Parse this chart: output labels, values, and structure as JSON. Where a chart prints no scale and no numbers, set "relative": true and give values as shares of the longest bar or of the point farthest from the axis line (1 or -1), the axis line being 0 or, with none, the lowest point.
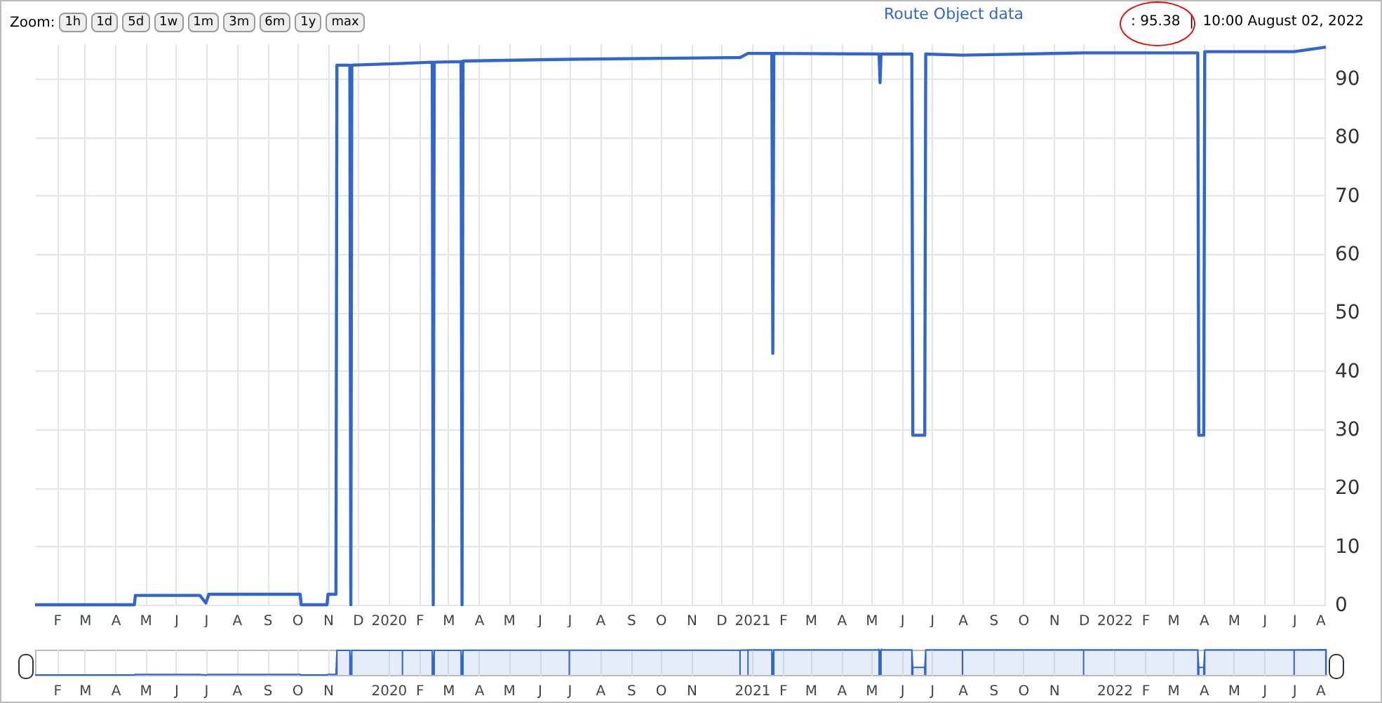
{
  "chart_data": [
    {
      "type": "line",
      "legend": "top right",
      "grid": true,
      "marker": "none",
      "annotations": [
        "Zoom:",
        "1h",
        "1d",
        "5d",
        "1w",
        "1m",
        "3m",
        "6m",
        "1y",
        "max",
        ": 95.38  |  10:00 August 02, 2022"
      ],
      "xlim": [
        "2019-01-10",
        "2022-08-02"
      ],
      "ylim": [
        0,
        96
      ],
      "yticks": [
        0,
        10,
        20,
        30,
        40,
        50,
        60,
        70,
        80,
        90
      ],
      "xticks": [
        {
          "value": "2019-02-01",
          "label": "F"
        },
        {
          "value": "2019-03-01",
          "label": "M"
        },
        {
          "value": "2019-04-01",
          "label": "A"
        },
        {
          "value": "2019-05-01",
          "label": "M"
        },
        {
          "value": "2019-06-01",
          "label": "J"
        },
        {
          "value": "2019-07-01",
          "label": "J"
        },
        {
          "value": "2019-08-01",
          "label": "A"
        },
        {
          "value": "2019-09-01",
          "label": "S"
        },
        {
          "value": "2019-10-01",
          "label": "O"
        },
        {
          "value": "2019-11-01",
          "label": "N"
        },
        {
          "value": "2019-12-01",
          "label": "D"
        },
        {
          "value": "2020-01-01",
          "label": "2020"
        },
        {
          "value": "2020-02-01",
          "label": "F"
        },
        {
          "value": "2020-03-01",
          "label": "M"
        },
        {
          "value": "2020-04-01",
          "label": "A"
        },
        {
          "value": "2020-05-01",
          "label": "M"
        },
        {
          "value": "2020-06-01",
          "label": "J"
        },
        {
          "value": "2020-07-01",
          "label": "J"
        },
        {
          "value": "2020-08-01",
          "label": "A"
        },
        {
          "value": "2020-09-01",
          "label": "S"
        },
        {
          "value": "2020-10-01",
          "label": "O"
        },
        {
          "value": "2020-11-01",
          "label": "N"
        },
        {
          "value": "2020-12-01",
          "label": "D"
        },
        {
          "value": "2021-01-01",
          "label": "2021"
        },
        {
          "value": "2021-02-01",
          "label": "F"
        },
        {
          "value": "2021-03-01",
          "label": "M"
        },
        {
          "value": "2021-04-01",
          "label": "A"
        },
        {
          "value": "2021-05-01",
          "label": "M"
        },
        {
          "value": "2021-06-01",
          "label": "J"
        },
        {
          "value": "2021-07-01",
          "label": "J"
        },
        {
          "value": "2021-08-01",
          "label": "A"
        },
        {
          "value": "2021-09-01",
          "label": "S"
        },
        {
          "value": "2021-10-01",
          "label": "O"
        },
        {
          "value": "2021-11-01",
          "label": "N"
        },
        {
          "value": "2021-12-01",
          "label": "D"
        },
        {
          "value": "2022-01-01",
          "label": "2022"
        },
        {
          "value": "2022-02-01",
          "label": "F"
        },
        {
          "value": "2022-03-01",
          "label": "M"
        },
        {
          "value": "2022-04-01",
          "label": "A"
        },
        {
          "value": "2022-05-01",
          "label": "M"
        },
        {
          "value": "2022-06-01",
          "label": "J"
        },
        {
          "value": "2022-07-01",
          "label": "J"
        },
        {
          "value": "2022-08-01",
          "label": "A"
        }
      ],
      "x": [
        "2019-01-10",
        "2019-04-20",
        "2019-04-21",
        "2019-06-25",
        "2019-07-01",
        "2019-07-04",
        "2019-10-04",
        "2019-10-05",
        "2019-10-31",
        "2019-11-01",
        "2019-11-09",
        "2019-11-10",
        "2019-11-23",
        "2019-11-24",
        "2019-11-25",
        "2020-01-15",
        "2020-02-14",
        "2020-02-15",
        "2020-02-16",
        "2020-03-14",
        "2020-03-15",
        "2020-03-16",
        "2020-07-01",
        "2020-12-20",
        "2020-12-28",
        "2021-01-21",
        "2021-01-22",
        "2021-01-23",
        "2021-05-09",
        "2021-05-10",
        "2021-05-11",
        "2021-06-11",
        "2021-06-12",
        "2021-06-24",
        "2021-06-25",
        "2021-08-01",
        "2021-12-01",
        "2022-03-26",
        "2022-03-27",
        "2022-04-01",
        "2022-04-02",
        "2022-07-01",
        "2022-08-02"
      ],
      "series": [
        {
          "name": "Route Object data",
          "color": "#3366cc",
          "values": [
            0,
            0,
            1.6,
            1.6,
            0.3,
            1.8,
            1.8,
            0,
            0,
            1.8,
            1.8,
            92.3,
            92.3,
            0,
            92.3,
            92.6,
            92.8,
            0,
            92.8,
            92.9,
            0,
            93,
            93.3,
            93.6,
            94.3,
            94.3,
            43,
            94.3,
            94.2,
            89.3,
            94.2,
            94.2,
            29,
            29,
            94.2,
            94,
            94.4,
            94.4,
            29,
            29,
            94.6,
            94.6,
            95.38
          ]
        }
      ]
    },
    {
      "type": "area",
      "grid": "x",
      "relative": true,
      "xlim": [
        "2019-01-10",
        "2022-08-02"
      ],
      "xticks": [
        {
          "value": "2019-02-01",
          "label": "F"
        },
        {
          "value": "2019-03-01",
          "label": "M"
        },
        {
          "value": "2019-04-01",
          "label": "A"
        },
        {
          "value": "2019-05-01",
          "label": "M"
        },
        {
          "value": "2019-06-01",
          "label": "J"
        },
        {
          "value": "2019-07-01",
          "label": "J"
        },
        {
          "value": "2019-08-01",
          "label": "A"
        },
        {
          "value": "2019-09-01",
          "label": "S"
        },
        {
          "value": "2019-10-01",
          "label": "O"
        },
        {
          "value": "2019-11-01",
          "label": "N"
        },
        {
          "value": "2020-01-01",
          "label": "2020"
        },
        {
          "value": "2020-02-01",
          "label": "F"
        },
        {
          "value": "2020-03-01",
          "label": "M"
        },
        {
          "value": "2020-04-01",
          "label": "A"
        },
        {
          "value": "2020-05-01",
          "label": "M"
        },
        {
          "value": "2020-06-01",
          "label": "J"
        },
        {
          "value": "2020-07-01",
          "label": "J"
        },
        {
          "value": "2020-08-01",
          "label": "A"
        },
        {
          "value": "2020-09-01",
          "label": "S"
        },
        {
          "value": "2020-10-01",
          "label": "O"
        },
        {
          "value": "2020-11-01",
          "label": "N"
        },
        {
          "value": "2021-01-01",
          "label": "2021"
        },
        {
          "value": "2021-02-01",
          "label": "F"
        },
        {
          "value": "2021-03-01",
          "label": "M"
        },
        {
          "value": "2021-04-01",
          "label": "A"
        },
        {
          "value": "2021-05-01",
          "label": "M"
        },
        {
          "value": "2021-06-01",
          "label": "J"
        },
        {
          "value": "2021-07-01",
          "label": "J"
        },
        {
          "value": "2021-08-01",
          "label": "A"
        },
        {
          "value": "2021-09-01",
          "label": "S"
        },
        {
          "value": "2021-10-01",
          "label": "O"
        },
        {
          "value": "2021-11-01",
          "label": "N"
        },
        {
          "value": "2022-01-01",
          "label": "2022"
        },
        {
          "value": "2022-02-01",
          "label": "F"
        },
        {
          "value": "2022-03-01",
          "label": "M"
        },
        {
          "value": "2022-04-01",
          "label": "A"
        },
        {
          "value": "2022-05-01",
          "label": "M"
        },
        {
          "value": "2022-06-01",
          "label": "J"
        },
        {
          "value": "2022-07-01",
          "label": "J"
        },
        {
          "value": "2022-08-01",
          "label": "A"
        }
      ],
      "x": [
        "2019-01-10",
        "2019-04-20",
        "2019-04-21",
        "2019-06-25",
        "2019-07-01",
        "2019-07-04",
        "2019-10-04",
        "2019-10-05",
        "2019-10-31",
        "2019-11-01",
        "2019-11-09",
        "2019-11-10",
        "2019-11-23",
        "2019-11-24",
        "2019-11-25",
        "2020-01-15",
        "2020-02-14",
        "2020-02-15",
        "2020-02-16",
        "2020-03-14",
        "2020-03-15",
        "2020-03-16",
        "2020-07-01",
        "2020-12-20",
        "2020-12-28",
        "2021-01-21",
        "2021-01-22",
        "2021-01-23",
        "2021-05-09",
        "2021-05-10",
        "2021-05-11",
        "2021-06-11",
        "2021-06-12",
        "2021-06-24",
        "2021-06-25",
        "2021-08-01",
        "2021-12-01",
        "2022-03-26",
        "2022-03-27",
        "2022-04-01",
        "2022-04-02",
        "2022-07-01",
        "2022-08-02"
      ],
      "series": [
        {
          "color": "#3366cc",
          "values": [
            0,
            0,
            0.02,
            0.02,
            0,
            0.02,
            0.02,
            0,
            0,
            0.02,
            0.02,
            0.97,
            0.97,
            0,
            0.97,
            0.97,
            0.97,
            0,
            0.97,
            0.97,
            0,
            0.98,
            0.98,
            0.98,
            0.99,
            0.99,
            0.45,
            0.99,
            0.99,
            0.94,
            0.99,
            0.99,
            0.3,
            0.3,
            0.99,
            0.99,
            0.99,
            0.99,
            0.3,
            0.3,
            0.99,
            0.99,
            1
          ]
        }
      ]
    }
  ]
}
